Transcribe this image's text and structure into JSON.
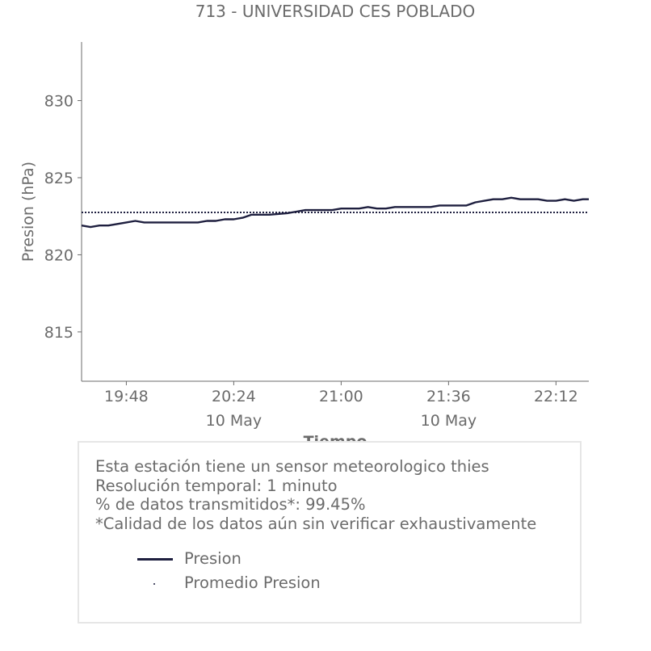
{
  "chart_data": {
    "type": "line",
    "title": "713 - UNIVERSIDAD CES POBLADO",
    "xlabel": "Tiempo",
    "ylabel": "Presion (hPa)",
    "ylim": [
      811.8,
      833.8
    ],
    "yticks": [
      815,
      820,
      825,
      830
    ],
    "xlim": [
      "19:33",
      "22:23"
    ],
    "xticks": [
      {
        "time": "19:48",
        "label": "19:48",
        "sub": ""
      },
      {
        "time": "20:24",
        "label": "20:24",
        "sub": "10 May"
      },
      {
        "time": "21:00",
        "label": "21:00",
        "sub": ""
      },
      {
        "time": "21:36",
        "label": "21:36",
        "sub": "10 May"
      },
      {
        "time": "22:12",
        "label": "22:12",
        "sub": ""
      }
    ],
    "series": [
      {
        "name": "Presion",
        "color": "#1e1f3f",
        "style": "solid",
        "points": [
          [
            "19:33",
            821.9
          ],
          [
            "19:36",
            821.8
          ],
          [
            "19:39",
            821.9
          ],
          [
            "19:42",
            821.9
          ],
          [
            "19:45",
            822.0
          ],
          [
            "19:48",
            822.1
          ],
          [
            "19:51",
            822.2
          ],
          [
            "19:54",
            822.1
          ],
          [
            "20:00",
            822.1
          ],
          [
            "20:12",
            822.1
          ],
          [
            "20:15",
            822.2
          ],
          [
            "20:18",
            822.2
          ],
          [
            "20:21",
            822.3
          ],
          [
            "20:24",
            822.3
          ],
          [
            "20:27",
            822.4
          ],
          [
            "20:30",
            822.6
          ],
          [
            "20:36",
            822.6
          ],
          [
            "20:42",
            822.7
          ],
          [
            "20:45",
            822.8
          ],
          [
            "20:48",
            822.9
          ],
          [
            "20:57",
            822.9
          ],
          [
            "21:00",
            823.0
          ],
          [
            "21:06",
            823.0
          ],
          [
            "21:09",
            823.1
          ],
          [
            "21:12",
            823.0
          ],
          [
            "21:15",
            823.0
          ],
          [
            "21:18",
            823.1
          ],
          [
            "21:24",
            823.1
          ],
          [
            "21:30",
            823.1
          ],
          [
            "21:33",
            823.2
          ],
          [
            "21:42",
            823.2
          ],
          [
            "21:45",
            823.4
          ],
          [
            "21:48",
            823.5
          ],
          [
            "21:51",
            823.6
          ],
          [
            "21:54",
            823.6
          ],
          [
            "21:57",
            823.7
          ],
          [
            "22:00",
            823.6
          ],
          [
            "22:06",
            823.6
          ],
          [
            "22:09",
            823.5
          ],
          [
            "22:12",
            823.5
          ],
          [
            "22:15",
            823.6
          ],
          [
            "22:18",
            823.5
          ],
          [
            "22:21",
            823.6
          ],
          [
            "22:23",
            823.6
          ]
        ]
      },
      {
        "name": "Promedio Presion",
        "color": "#1e1f3f",
        "style": "dotted",
        "value": 822.75
      }
    ],
    "legend": "below-chart",
    "grid": false
  },
  "info": {
    "lines": [
      "Esta estación tiene un sensor meteorologico thies",
      "Resolución temporal: 1 minuto",
      "% de datos transmitidos*: 99.45%",
      "*Calidad de los datos aún sin verificar exhaustivamente"
    ],
    "legend": [
      {
        "label": "Presion",
        "marker": "line"
      },
      {
        "label": "Promedio Presion",
        "marker": "dot"
      }
    ]
  }
}
